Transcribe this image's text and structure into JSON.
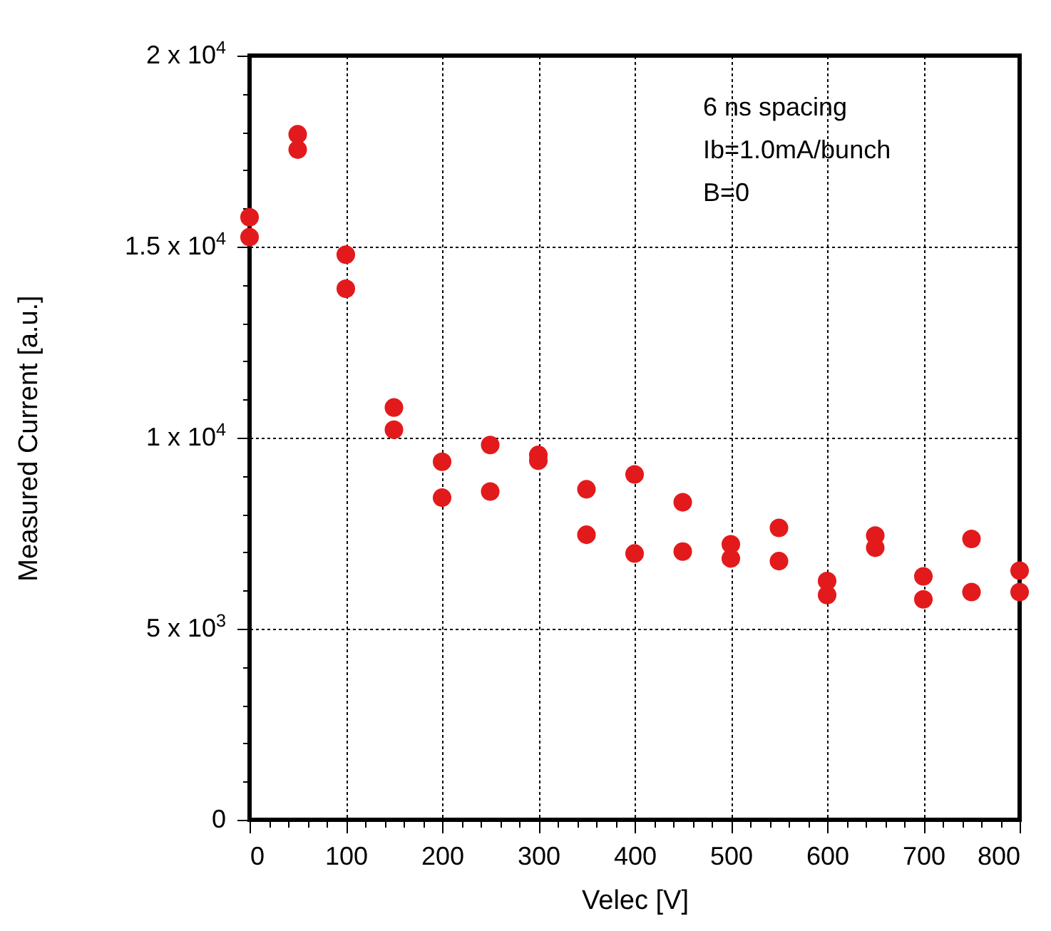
{
  "chart_data": {
    "type": "scatter",
    "xlabel": "Velec [V]",
    "ylabel": "Measured Current [a.u.]",
    "annotations": [
      "6 ns spacing",
      "Ib=1.0mA/bunch",
      "B=0"
    ],
    "series": [
      {
        "color": "#e31a1c",
        "x": [
          0,
          0,
          50,
          50,
          100,
          100,
          150,
          150,
          200,
          200,
          250,
          250,
          300,
          300,
          350,
          350,
          400,
          400,
          450,
          450,
          500,
          500,
          550,
          550,
          600,
          600,
          650,
          650,
          700,
          700,
          750,
          750,
          800,
          800
        ],
        "values": [
          15770,
          15250,
          17940,
          17540,
          14790,
          13900,
          10790,
          10210,
          9370,
          8430,
          9810,
          8590,
          9550,
          9400,
          8650,
          7460,
          9040,
          6970,
          8310,
          7020,
          7210,
          6840,
          7640,
          6770,
          6250,
          5880,
          7440,
          7120,
          6370,
          5770,
          7350,
          5960,
          6520,
          5960
        ]
      }
    ],
    "marker": "circle",
    "grid": true,
    "xlim": [
      0,
      800
    ],
    "ylim": [
      0,
      20000
    ],
    "xticks": [
      0,
      {
        "value": 20,
        "label": null
      },
      {
        "value": 40,
        "label": null
      },
      {
        "value": 60,
        "label": null
      },
      {
        "value": 80,
        "label": null
      },
      100,
      {
        "value": 120,
        "label": null
      },
      {
        "value": 140,
        "label": null
      },
      {
        "value": 160,
        "label": null
      },
      {
        "value": 180,
        "label": null
      },
      200,
      {
        "value": 220,
        "label": null
      },
      {
        "value": 240,
        "label": null
      },
      {
        "value": 260,
        "label": null
      },
      {
        "value": 280,
        "label": null
      },
      300,
      {
        "value": 320,
        "label": null
      },
      {
        "value": 340,
        "label": null
      },
      {
        "value": 360,
        "label": null
      },
      {
        "value": 380,
        "label": null
      },
      400,
      {
        "value": 420,
        "label": null
      },
      {
        "value": 440,
        "label": null
      },
      {
        "value": 460,
        "label": null
      },
      {
        "value": 480,
        "label": null
      },
      500,
      {
        "value": 520,
        "label": null
      },
      {
        "value": 540,
        "label": null
      },
      {
        "value": 560,
        "label": null
      },
      {
        "value": 580,
        "label": null
      },
      600,
      {
        "value": 620,
        "label": null
      },
      {
        "value": 640,
        "label": null
      },
      {
        "value": 660,
        "label": null
      },
      {
        "value": 680,
        "label": null
      },
      700,
      {
        "value": 720,
        "label": null
      },
      {
        "value": 740,
        "label": null
      },
      {
        "value": 760,
        "label": null
      },
      {
        "value": 780,
        "label": null
      },
      800
    ],
    "yticks": [
      0,
      {
        "value": 1000,
        "label": null
      },
      {
        "value": 2000,
        "label": null
      },
      {
        "value": 3000,
        "label": null
      },
      {
        "value": 4000,
        "label": null
      },
      {
        "value": 5000,
        "label": "5 x 10$^{3}$"
      },
      {
        "value": 6000,
        "label": null
      },
      {
        "value": 7000,
        "label": null
      },
      {
        "value": 8000,
        "label": null
      },
      {
        "value": 9000,
        "label": null
      },
      {
        "value": 10000,
        "label": "1 x 10$^{4}$"
      },
      {
        "value": 11000,
        "label": null
      },
      {
        "value": 12000,
        "label": null
      },
      {
        "value": 13000,
        "label": null
      },
      {
        "value": 14000,
        "label": null
      },
      {
        "value": 15000,
        "label": "1.5 x 10$^{4}$"
      },
      {
        "value": 16000,
        "label": null
      },
      {
        "value": 17000,
        "label": null
      },
      {
        "value": 18000,
        "label": null
      },
      {
        "value": 19000,
        "label": null
      },
      {
        "value": 20000,
        "label": "2 x 10$^{4}$"
      }
    ]
  }
}
